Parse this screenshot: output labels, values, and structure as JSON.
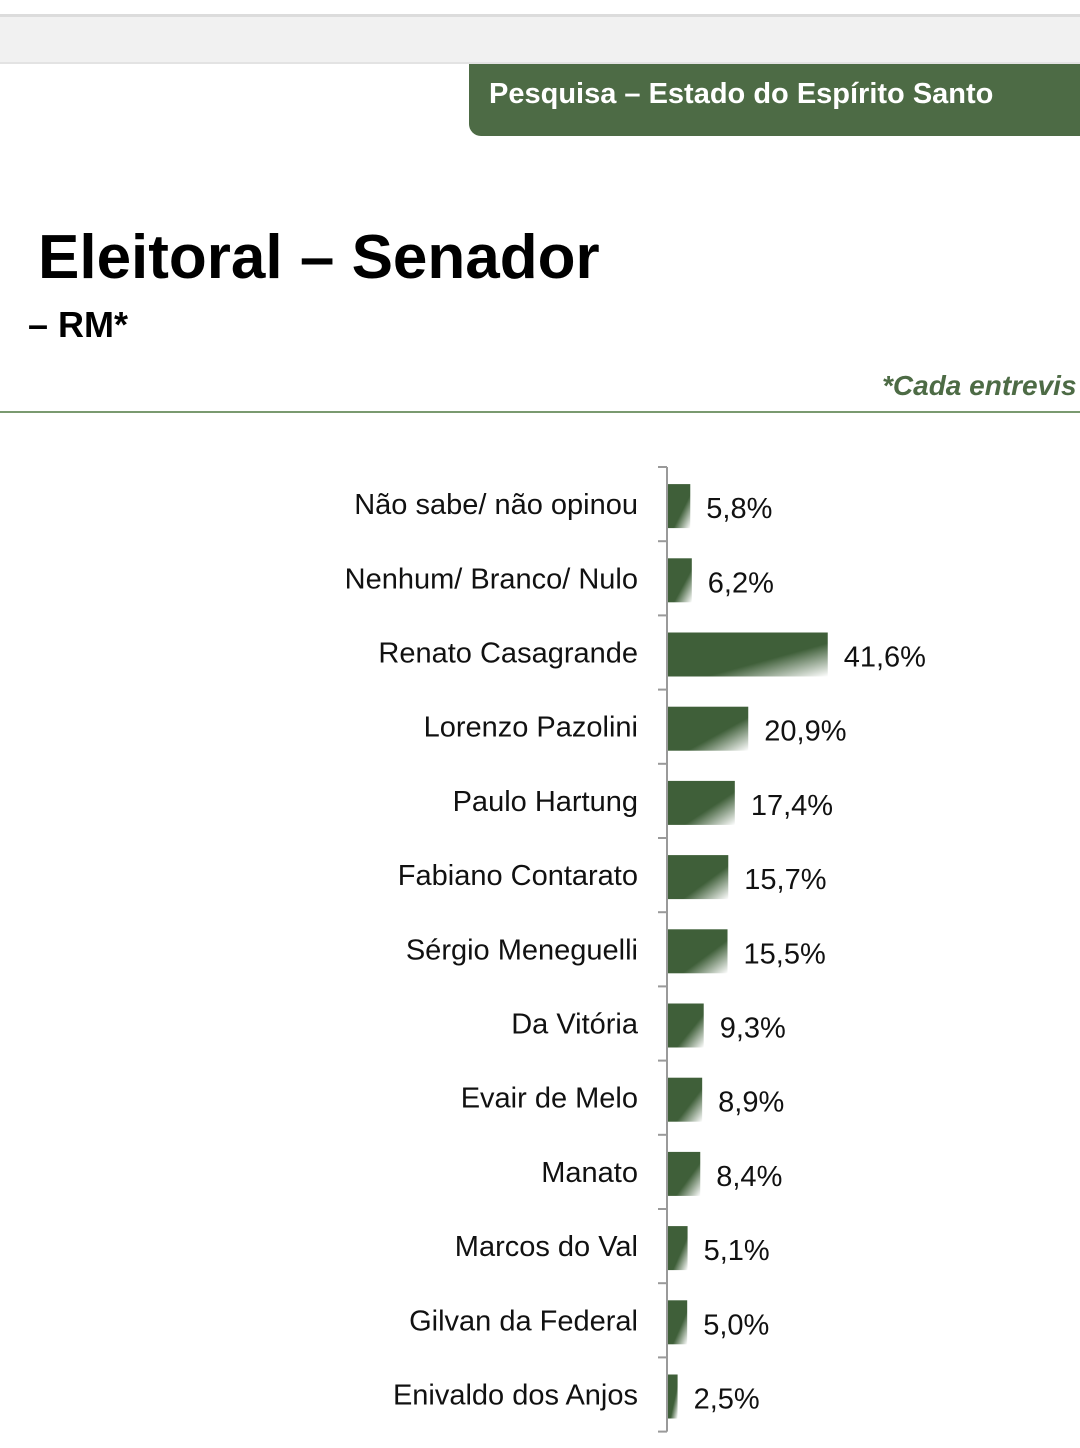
{
  "header": {
    "tab_title": "Pesquisa – Estado do Espírito Santo"
  },
  "page": {
    "title": "Eleitoral – Senador",
    "subtitle": "– RM*",
    "note": "*Cada entrevis"
  },
  "colors": {
    "accent": "#4d6b45",
    "bar_gradient_start": "#3f5f39",
    "bar_gradient_end": "#ffffff"
  },
  "chart_data": {
    "type": "bar",
    "orientation": "horizontal",
    "categories": [
      "Não sabe/ não opinou",
      "Nenhum/ Branco/ Nulo",
      "Renato Casagrande",
      "Lorenzo Pazolini",
      "Paulo Hartung",
      "Fabiano Contarato",
      "Sérgio Meneguelli",
      "Da Vitória",
      "Evair de Melo",
      "Manato",
      "Marcos do Val",
      "Gilvan da Federal",
      "Enivaldo dos Anjos"
    ],
    "values": [
      5.8,
      6.2,
      41.6,
      20.9,
      17.4,
      15.7,
      15.5,
      9.3,
      8.9,
      8.4,
      5.1,
      5.0,
      2.5
    ],
    "value_labels": [
      "5,8%",
      "6,2%",
      "41,6%",
      "20,9%",
      "17,4%",
      "15,7%",
      "15,5%",
      "9,3%",
      "8,9%",
      "8,4%",
      "5,1%",
      "5,0%",
      "2,5%"
    ],
    "unit": "%",
    "xlim": [
      0,
      100
    ],
    "grid": false,
    "legend": "none"
  }
}
